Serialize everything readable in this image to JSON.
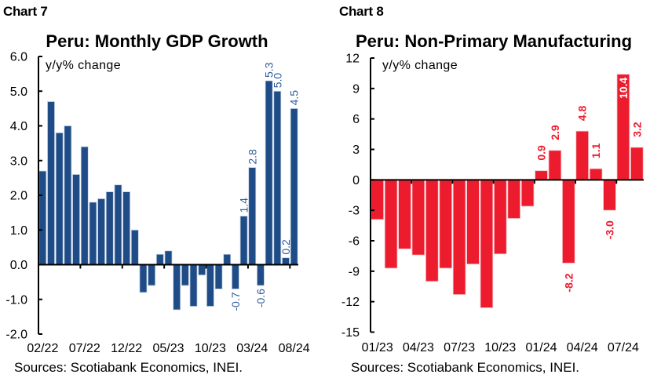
{
  "chart_data": [
    {
      "type": "bar",
      "label": "Chart 7",
      "title": "Peru: Monthly GDP Growth",
      "ylabel": "y/y% change",
      "xlabel": "",
      "source": "Sources: Scotiabank Economics, INEI.",
      "ylim": [
        -2.0,
        6.0
      ],
      "yticks": [
        6,
        5,
        4,
        3,
        2,
        1,
        0,
        -1,
        -2
      ],
      "ytick_labels": [
        "6.0",
        "5.0",
        "4.0",
        "3.0",
        "2.0",
        "1.0",
        "0.0",
        "-1.0",
        "-2.0"
      ],
      "categories": [
        "02/22",
        "03/22",
        "04/22",
        "05/22",
        "06/22",
        "07/22",
        "08/22",
        "09/22",
        "10/22",
        "11/22",
        "12/22",
        "01/23",
        "02/23",
        "03/23",
        "04/23",
        "05/23",
        "06/23",
        "07/23",
        "08/23",
        "09/23",
        "10/23",
        "11/23",
        "12/23",
        "01/24",
        "02/24",
        "03/24",
        "04/24",
        "05/24",
        "06/24",
        "07/24",
        "08/24"
      ],
      "xtick_labels": [
        "02/22",
        "07/22",
        "12/22",
        "05/23",
        "10/23",
        "03/24",
        "08/24"
      ],
      "values": [
        2.7,
        4.7,
        3.8,
        4.0,
        2.6,
        3.4,
        1.8,
        1.9,
        2.1,
        2.3,
        2.1,
        1.0,
        -0.8,
        -0.6,
        0.3,
        0.4,
        -1.3,
        -0.6,
        -1.2,
        -0.3,
        -1.2,
        -0.7,
        0.3,
        -0.7,
        1.4,
        2.8,
        -0.6,
        5.3,
        5.0,
        0.2,
        4.5
      ],
      "data_labels": [
        {
          "category": "01/24",
          "text": "-0.7",
          "placement": "outside"
        },
        {
          "category": "02/24",
          "text": "1.4",
          "placement": "outside"
        },
        {
          "category": "03/24",
          "text": "2.8",
          "placement": "outside"
        },
        {
          "category": "04/24",
          "text": "-0.6",
          "placement": "outside"
        },
        {
          "category": "05/24",
          "text": "5.3",
          "placement": "outside"
        },
        {
          "category": "06/24",
          "text": "5.0",
          "placement": "outside"
        },
        {
          "category": "07/24",
          "text": "0.2",
          "placement": "outside"
        },
        {
          "category": "08/24",
          "text": "4.5",
          "placement": "outside"
        }
      ],
      "color": "#1F4C86",
      "label_color": "#2E5C9C",
      "grid": false,
      "legend": "none"
    },
    {
      "type": "bar",
      "label": "Chart 8",
      "title": "Peru: Non-Primary Manufacturing",
      "ylabel": "y/y% change",
      "xlabel": "",
      "source": "Sources: Scotiabank Economics, INEI.",
      "ylim": [
        -15,
        12
      ],
      "yticks": [
        12,
        9,
        6,
        3,
        0,
        -3,
        -6,
        -9,
        -12,
        -15
      ],
      "ytick_labels": [
        "12",
        "9",
        "6",
        "3",
        "0",
        "-3",
        "-6",
        "-9",
        "-12",
        "-15"
      ],
      "categories": [
        "01/23",
        "02/23",
        "03/23",
        "04/23",
        "05/23",
        "06/23",
        "07/23",
        "08/23",
        "09/23",
        "10/23",
        "11/23",
        "12/23",
        "01/24",
        "02/24",
        "03/24",
        "04/24",
        "05/24",
        "06/24",
        "07/24",
        "08/24"
      ],
      "xtick_labels": [
        "01/23",
        "04/23",
        "07/23",
        "10/23",
        "01/24",
        "04/24",
        "07/24"
      ],
      "values": [
        -3.9,
        -8.7,
        -6.8,
        -7.4,
        -10.0,
        -8.7,
        -11.3,
        -8.3,
        -12.6,
        -7.3,
        -3.8,
        -2.6,
        0.9,
        2.9,
        -8.2,
        4.8,
        1.1,
        -3.0,
        10.4,
        3.2
      ],
      "data_labels": [
        {
          "category": "01/24",
          "text": "0.9",
          "placement": "outside"
        },
        {
          "category": "02/24",
          "text": "2.9",
          "placement": "outside"
        },
        {
          "category": "03/24",
          "text": "-8.2",
          "placement": "outside"
        },
        {
          "category": "04/24",
          "text": "4.8",
          "placement": "outside"
        },
        {
          "category": "05/24",
          "text": "1.1",
          "placement": "outside"
        },
        {
          "category": "06/24",
          "text": "-3.0",
          "placement": "outside"
        },
        {
          "category": "07/24",
          "text": "10.4",
          "placement": "inside"
        },
        {
          "category": "08/24",
          "text": "3.2",
          "placement": "outside"
        }
      ],
      "color": "#EC1C2E",
      "label_color": "#EC1C2E",
      "grid": false,
      "legend": "none"
    }
  ]
}
